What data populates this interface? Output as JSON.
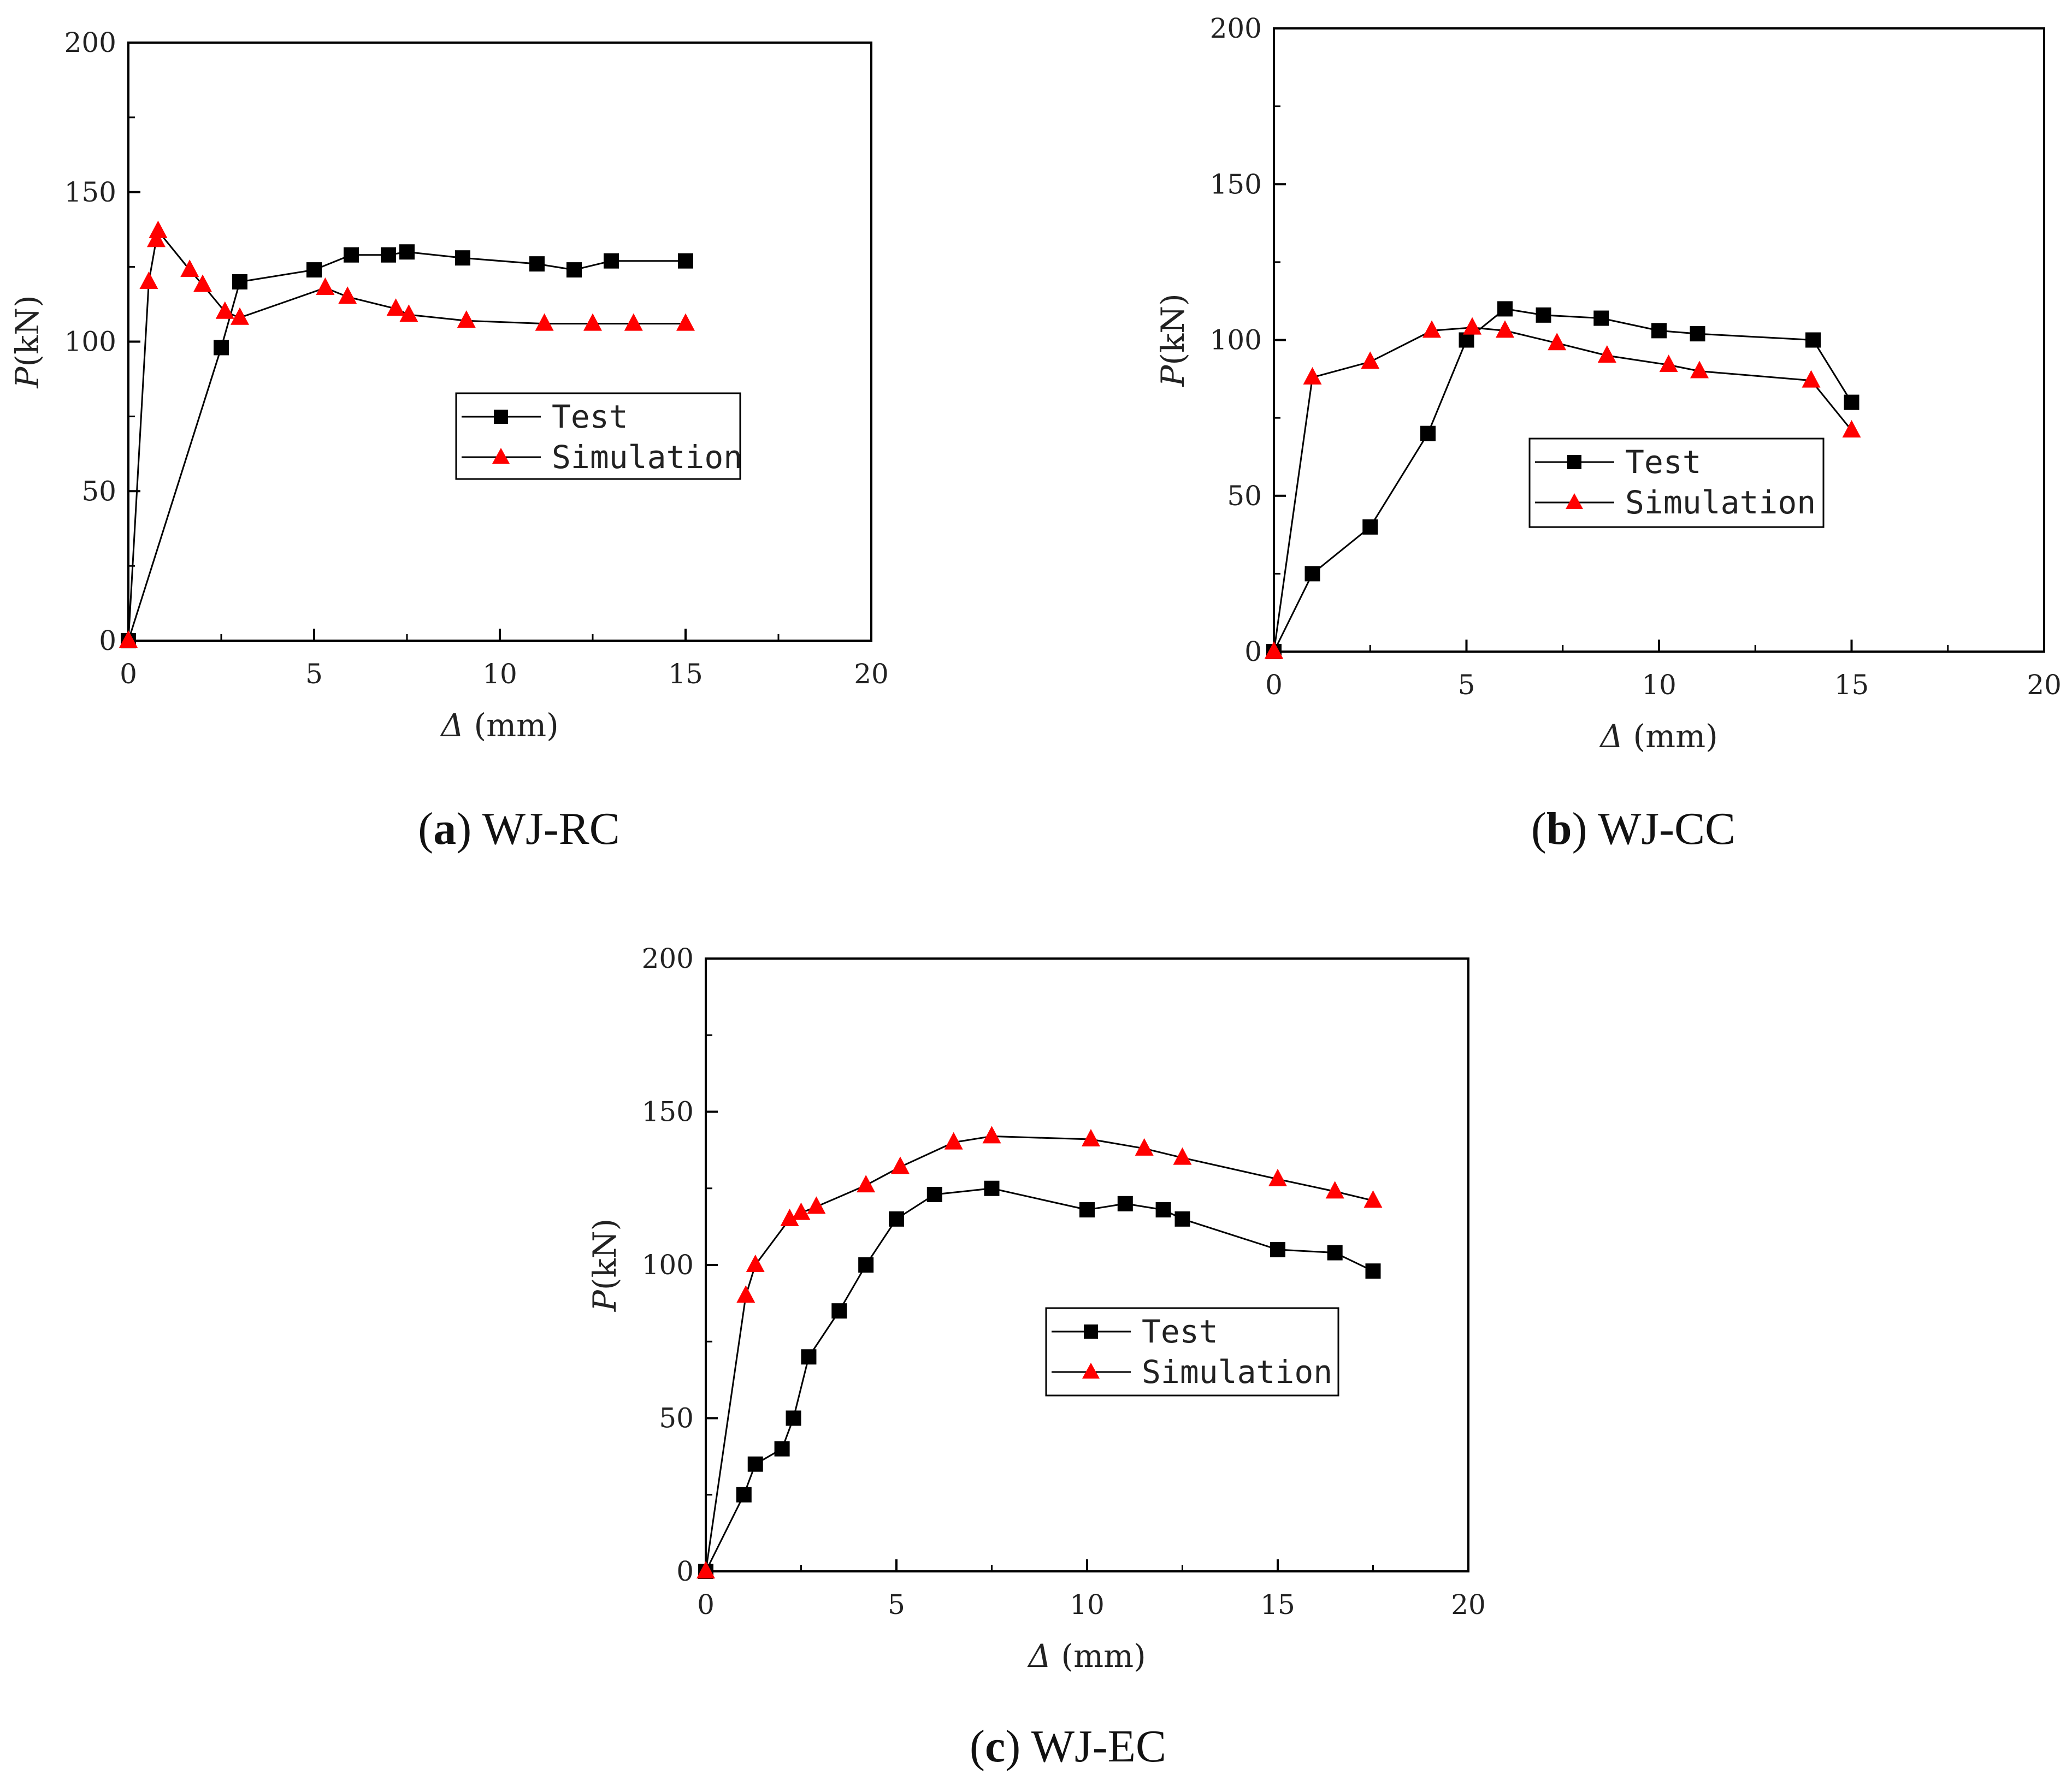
{
  "colors": {
    "test": "#000000",
    "simulation": "#ff0000",
    "axis": "#000000",
    "text": "#222222"
  },
  "chart_data": [
    {
      "id": "a",
      "type": "line",
      "caption_letter": "a",
      "caption_text": "WJ-RC",
      "xlabel_symbol": "Δ",
      "xlabel_unit": "(mm)",
      "ylabel_symbol": "P",
      "ylabel_unit": "(kN)",
      "xlim": [
        0,
        20
      ],
      "ylim": [
        0,
        200
      ],
      "xticks": [
        0,
        5,
        10,
        15,
        20
      ],
      "yticks": [
        0,
        50,
        100,
        150,
        200
      ],
      "legend_position": "center-right",
      "series": [
        {
          "name": "Test",
          "marker": "square",
          "x": [
            0,
            2.5,
            3,
            5,
            6,
            7,
            7.5,
            9,
            11,
            12,
            13,
            15
          ],
          "y": [
            0,
            98,
            120,
            124,
            129,
            129,
            130,
            128,
            126,
            124,
            127,
            127
          ]
        },
        {
          "name": "Simulation",
          "marker": "triangle",
          "x": [
            0,
            0.55,
            0.75,
            0.8,
            1.65,
            2.0,
            2.6,
            3.0,
            5.3,
            5.9,
            7.2,
            7.55,
            9.1,
            11.2,
            12.5,
            13.6,
            15
          ],
          "y": [
            0,
            120,
            134,
            137,
            124,
            119,
            110,
            108,
            118,
            115,
            111,
            109,
            107,
            106,
            106,
            106,
            106
          ]
        }
      ]
    },
    {
      "id": "b",
      "type": "line",
      "caption_letter": "b",
      "caption_text": "WJ-CC",
      "xlabel_symbol": "Δ",
      "xlabel_unit": "(mm)",
      "ylabel_symbol": "P",
      "ylabel_unit": "(kN)",
      "xlim": [
        0,
        20
      ],
      "ylim": [
        0,
        200
      ],
      "xticks": [
        0,
        5,
        10,
        15,
        20
      ],
      "yticks": [
        0,
        50,
        100,
        150,
        200
      ],
      "legend_position": "center-right",
      "series": [
        {
          "name": "Test",
          "marker": "square",
          "x": [
            0,
            1,
            2.5,
            4,
            5,
            6,
            7,
            8.5,
            10,
            11,
            14,
            15
          ],
          "y": [
            0,
            25,
            40,
            70,
            100,
            110,
            108,
            107,
            103,
            102,
            100,
            80
          ]
        },
        {
          "name": "Simulation",
          "marker": "triangle",
          "x": [
            0,
            1,
            2.5,
            4.1,
            5.15,
            6,
            7.35,
            8.65,
            10.25,
            11.05,
            13.95,
            15
          ],
          "y": [
            0,
            88,
            93,
            103,
            104,
            103,
            99,
            95,
            92,
            90,
            87,
            71
          ]
        }
      ]
    },
    {
      "id": "c",
      "type": "line",
      "caption_letter": "c",
      "caption_text": "WJ-EC",
      "xlabel_symbol": "Δ",
      "xlabel_unit": "(mm)",
      "ylabel_symbol": "P",
      "ylabel_unit": "(kN)",
      "xlim": [
        0,
        20
      ],
      "ylim": [
        0,
        200
      ],
      "xticks": [
        0,
        5,
        10,
        15,
        20
      ],
      "yticks": [
        0,
        50,
        100,
        150,
        200
      ],
      "legend_position": "center-right",
      "series": [
        {
          "name": "Test",
          "marker": "square",
          "x": [
            0,
            1,
            1.3,
            2,
            2.3,
            2.7,
            3.5,
            4.2,
            5,
            6,
            7.5,
            10,
            11,
            12,
            12.5,
            15,
            16.5,
            17.5
          ],
          "y": [
            0,
            25,
            35,
            40,
            50,
            70,
            85,
            100,
            115,
            123,
            125,
            118,
            120,
            118,
            115,
            105,
            104,
            98
          ]
        },
        {
          "name": "Simulation",
          "marker": "triangle",
          "x": [
            0,
            1.05,
            1.3,
            2.2,
            2.5,
            2.9,
            4.2,
            5.1,
            6.5,
            7.5,
            10.1,
            11.5,
            12.5,
            15,
            16.5,
            17.5
          ],
          "y": [
            0,
            90,
            100,
            115,
            117,
            119,
            126,
            132,
            140,
            142,
            141,
            138,
            135,
            128,
            124,
            121
          ]
        }
      ]
    }
  ]
}
